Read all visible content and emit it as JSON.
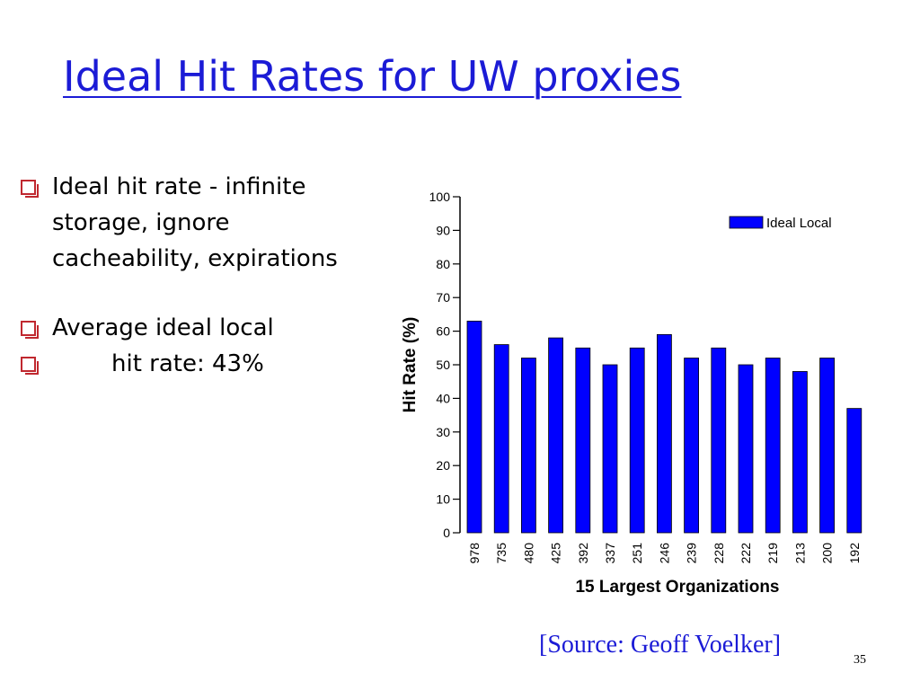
{
  "slide": {
    "title": "Ideal Hit Rates for UW proxies",
    "bullets": [
      {
        "lines": [
          "Ideal hit rate - infinite",
          "storage, ignore",
          "cacheability, expirations"
        ]
      },
      {
        "lines": [
          "Average ideal local"
        ]
      },
      {
        "lines": [
          "hit rate:  43%"
        ]
      }
    ],
    "source": "[Source: Geoff Voelker]",
    "page_number": "35"
  },
  "chart_data": {
    "type": "bar",
    "categories": [
      "978",
      "735",
      "480",
      "425",
      "392",
      "337",
      "251",
      "246",
      "239",
      "228",
      "222",
      "219",
      "213",
      "200",
      "192"
    ],
    "series": [
      {
        "name": "Ideal Local",
        "values": [
          63,
          56,
          52,
          58,
          55,
          50,
          55,
          59,
          52,
          55,
          50,
          52,
          48,
          52,
          37
        ]
      }
    ],
    "xlabel": "15 Largest Organizations",
    "ylabel": "Hit Rate (%)",
    "ylim": [
      0,
      100
    ],
    "yticks": [
      0,
      10,
      20,
      30,
      40,
      50,
      60,
      70,
      80,
      90,
      100
    ],
    "grid": false,
    "legend": "top-right",
    "colors": {
      "bar": "#0000ff"
    }
  }
}
